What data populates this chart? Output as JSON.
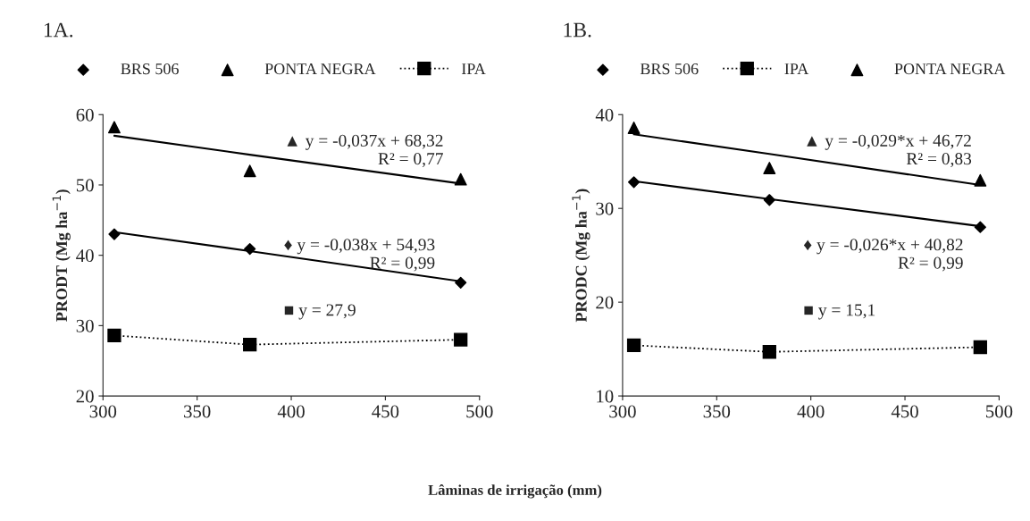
{
  "chart_data": [
    {
      "type": "scatter",
      "title": "1A.",
      "ylabel": "PRODT (Mg ha$^{−1}$)",
      "xlabel": "Lâminas de irrigação (mm)",
      "x": [
        306,
        378,
        490
      ],
      "xlim": [
        300,
        500
      ],
      "xticks": [
        300,
        350,
        400,
        450,
        500
      ],
      "ylim": [
        20,
        60
      ],
      "yticks": [
        20,
        30,
        40,
        50,
        60
      ],
      "grid": false,
      "legend": "top",
      "series": [
        {
          "name": "BRS 506",
          "marker": "diamond",
          "color": "#000000",
          "values": [
            43.0,
            40.9,
            36.1
          ]
        },
        {
          "name": "PONTA NEGRA",
          "marker": "triangle",
          "color": "#000000",
          "values": [
            58.2,
            52.0,
            50.8
          ]
        },
        {
          "name": "IPA",
          "type": "line",
          "marker": "square",
          "line_style": "dotted",
          "color": "#000000",
          "values": [
            28.6,
            27.3,
            28.0
          ]
        },
        {
          "type": "line",
          "marker": "none",
          "line_style": "solid",
          "color": "#000000",
          "values": [
            57.0,
            54.3,
            50.2
          ]
        },
        {
          "type": "line",
          "marker": "none",
          "line_style": "solid",
          "color": "#000000",
          "values": [
            43.3,
            40.6,
            36.3
          ]
        }
      ],
      "annotations": [
        "▲ y = -0,037x + 68,32\nR² = 0,77",
        "♦ y = -0,038x + 54,93\nR² = 0,99",
        "■ y = 27,9"
      ]
    },
    {
      "type": "scatter",
      "title": "1B.",
      "ylabel": "PRODC (Mg ha$^{−1}$)",
      "x": [
        306,
        378,
        490
      ],
      "xlim": [
        300,
        500
      ],
      "xticks": [
        300,
        350,
        400,
        450,
        500
      ],
      "ylim": [
        10,
        40
      ],
      "yticks": [
        10,
        20,
        30,
        40
      ],
      "grid": false,
      "legend": "top",
      "series": [
        {
          "name": "BRS 506",
          "marker": "diamond",
          "color": "#000000",
          "values": [
            32.8,
            30.9,
            28.0
          ]
        },
        {
          "name": "IPA",
          "type": "line",
          "marker": "square",
          "line_style": "dotted",
          "color": "#000000",
          "values": [
            15.4,
            14.7,
            15.2
          ]
        },
        {
          "name": "PONTA NEGRA",
          "marker": "triangle",
          "color": "#000000",
          "values": [
            38.6,
            34.3,
            33.0
          ]
        },
        {
          "type": "line",
          "marker": "none",
          "line_style": "solid",
          "color": "#000000",
          "values": [
            37.9,
            35.8,
            32.5
          ]
        },
        {
          "type": "line",
          "marker": "none",
          "line_style": "solid",
          "color": "#000000",
          "values": [
            32.9,
            31.0,
            28.1
          ]
        }
      ],
      "annotations": [
        "▲ y = -0,029*x + 46,72\nR² = 0,83",
        "♦ y = -0,026*x + 40,82\nR² = 0,99",
        "■ y = 15,1"
      ]
    }
  ]
}
